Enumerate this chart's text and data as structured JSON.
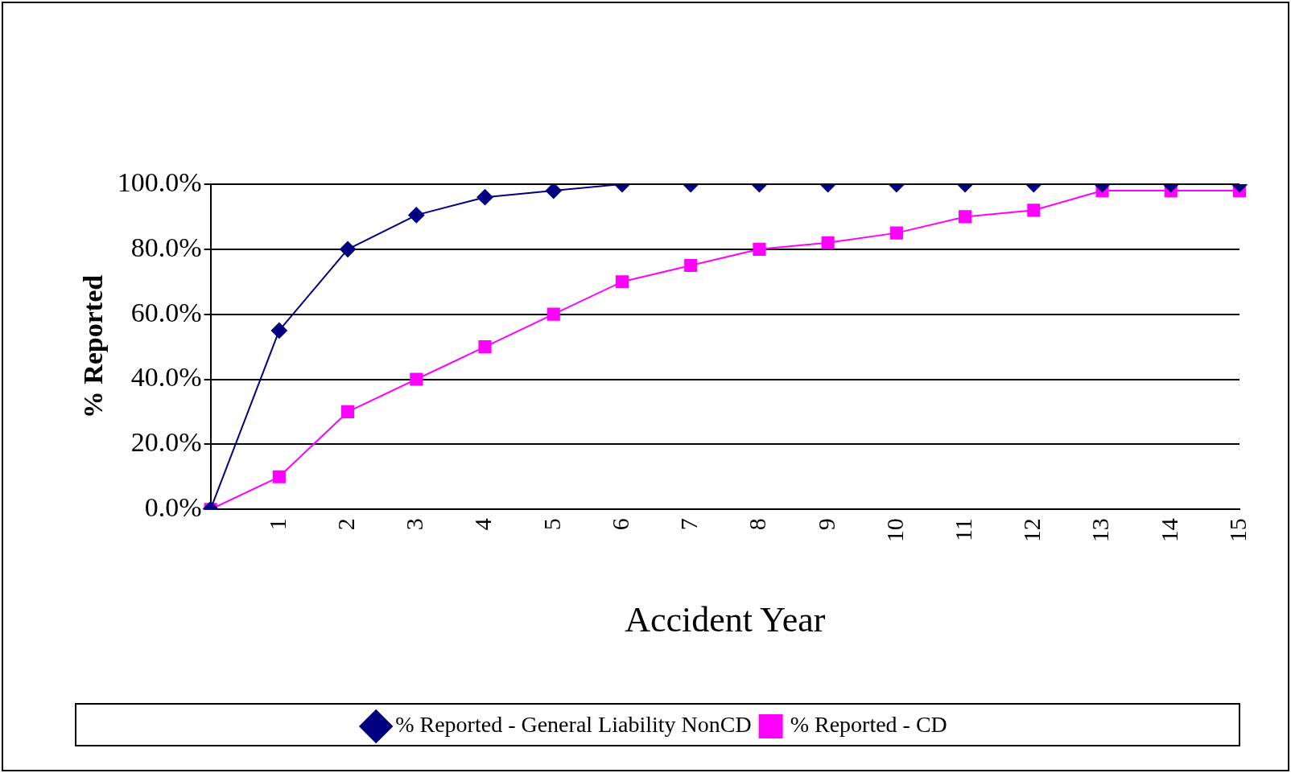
{
  "chart_data": {
    "type": "line",
    "xlabel": "Accident Year",
    "ylabel": "% Reported",
    "categories": [
      null,
      "1",
      "2",
      "3",
      "4",
      "5",
      "6",
      "7",
      "8",
      "9",
      "10",
      "11",
      "12",
      "13",
      "14",
      "15"
    ],
    "series": [
      {
        "name": "% Reported - General Liability NonCD",
        "color": "#000080",
        "marker": "diamond",
        "values": [
          0,
          55,
          80,
          90.5,
          96,
          98,
          100,
          100,
          100,
          100,
          100,
          100,
          100,
          100,
          100,
          100
        ]
      },
      {
        "name": "% Reported - CD",
        "color": "#ff00ff",
        "marker": "square",
        "values": [
          0,
          10,
          30,
          40,
          50,
          60,
          70,
          75,
          80,
          82,
          85,
          90,
          92,
          98,
          98,
          98
        ]
      }
    ],
    "ylim": [
      0,
      100
    ],
    "yticks": [
      {
        "value": 0,
        "label": "0.0%"
      },
      {
        "value": 20,
        "label": "20.0%"
      },
      {
        "value": 40,
        "label": "40.0%"
      },
      {
        "value": 60,
        "label": "60.0%"
      },
      {
        "value": 80,
        "label": "80.0%"
      },
      {
        "value": 100,
        "label": "100.0%"
      }
    ],
    "grid": "y",
    "legend": "bottom",
    "line_style": "solid"
  }
}
